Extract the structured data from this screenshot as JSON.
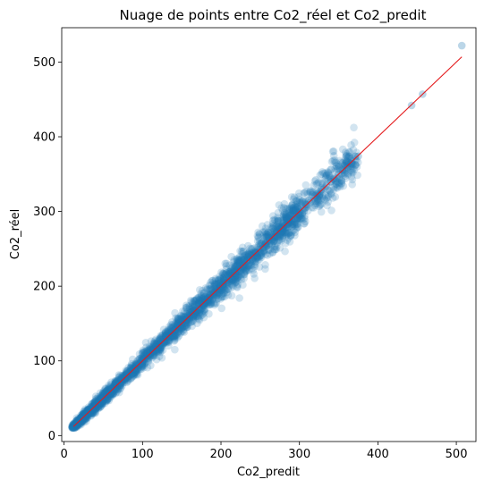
{
  "chart_data": {
    "type": "scatter",
    "title": "Nuage de points entre Co2_réel et Co2_predit",
    "xlabel": "Co2_predit",
    "ylabel": "Co2_réel",
    "xlim": [
      -3,
      525
    ],
    "ylim": [
      -8,
      546
    ],
    "x_ticks": [
      0,
      100,
      200,
      300,
      400,
      500
    ],
    "y_ticks": [
      0,
      100,
      200,
      300,
      400,
      500
    ],
    "grid": false,
    "marker_color": "#1f77b4",
    "marker_alpha": 0.2,
    "line_color": "#e41a1c",
    "identity_line": {
      "x": [
        12,
        507
      ],
      "y": [
        12,
        507
      ]
    },
    "highlighted_points": [
      {
        "x": 507,
        "y": 522
      },
      {
        "x": 457,
        "y": 457
      },
      {
        "x": 443,
        "y": 442
      },
      {
        "x": 375,
        "y": 374
      },
      {
        "x": 371,
        "y": 374
      },
      {
        "x": 363,
        "y": 374
      },
      {
        "x": 355,
        "y": 365
      },
      {
        "x": 350,
        "y": 360
      },
      {
        "x": 340,
        "y": 340
      }
    ],
    "bulk_range": {
      "x": [
        10,
        375
      ],
      "y": [
        10,
        375
      ]
    }
  }
}
